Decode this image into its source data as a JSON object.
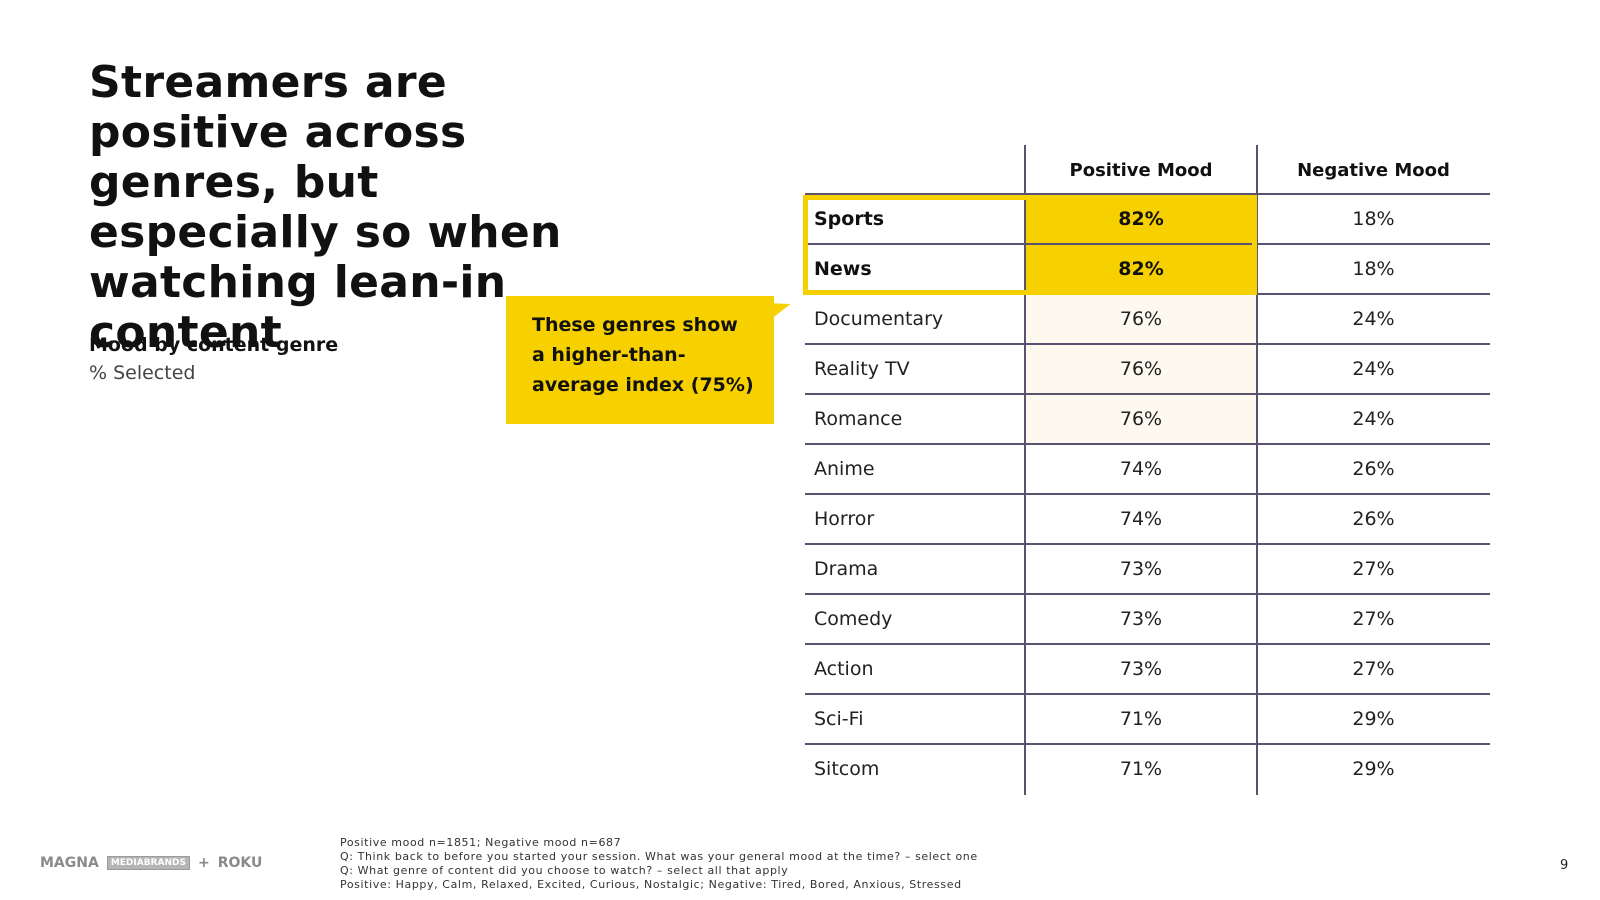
{
  "slide": {
    "title": "Streamers are positive across genres, but especially so when watching lean-in content",
    "subtitle": "Mood by content genre",
    "subtitle_note": "% Selected",
    "callout": "These genres show a higher-than-average index (75%)",
    "page_number": "9"
  },
  "table": {
    "headers": [
      "",
      "Positive Mood",
      "Negative Mood"
    ],
    "rows": [
      {
        "genre": "Sports",
        "positive": "82%",
        "negative": "18%",
        "highlight": "strong"
      },
      {
        "genre": "News",
        "positive": "82%",
        "negative": "18%",
        "highlight": "strong"
      },
      {
        "genre": "Documentary",
        "positive": "76%",
        "negative": "24%",
        "highlight": "light"
      },
      {
        "genre": "Reality TV",
        "positive": "76%",
        "negative": "24%",
        "highlight": "light"
      },
      {
        "genre": "Romance",
        "positive": "76%",
        "negative": "24%",
        "highlight": "light"
      },
      {
        "genre": "Anime",
        "positive": "74%",
        "negative": "26%",
        "highlight": "none"
      },
      {
        "genre": "Horror",
        "positive": "74%",
        "negative": "26%",
        "highlight": "none"
      },
      {
        "genre": "Drama",
        "positive": "73%",
        "negative": "27%",
        "highlight": "none"
      },
      {
        "genre": "Comedy",
        "positive": "73%",
        "negative": "27%",
        "highlight": "none"
      },
      {
        "genre": "Action",
        "positive": "73%",
        "negative": "27%",
        "highlight": "none"
      },
      {
        "genre": "Sci-Fi",
        "positive": "71%",
        "negative": "29%",
        "highlight": "none"
      },
      {
        "genre": "Sitcom",
        "positive": "71%",
        "negative": "29%",
        "highlight": "none"
      }
    ]
  },
  "footnotes": [
    "Positive mood n=1851; Negative mood n=687",
    "Q: Think back to before you started your session. What was your general mood at the time? – select one",
    "Q:  What genre of content did you choose to watch? – select all that apply",
    "Positive: Happy, Calm, Relaxed, Excited, Curious, Nostalgic; Negative: Tired, Bored, Anxious, Stressed"
  ],
  "logos": {
    "magna": "MAGNA",
    "mediabrands": "MEDIABRANDS",
    "plus": "+",
    "roku": "ROKU"
  },
  "colors": {
    "accent_yellow": "#f7d000",
    "light_highlight": "#fdf9ee",
    "grid_line": "#5a5370"
  }
}
